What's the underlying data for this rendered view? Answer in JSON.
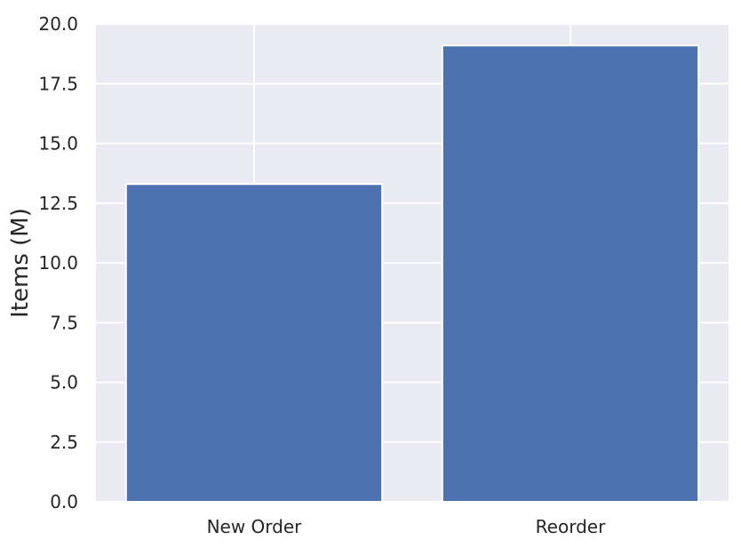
{
  "chart_data": {
    "type": "bar",
    "title": "",
    "xlabel": "",
    "ylabel": "Items (M)",
    "categories": [
      "New Order",
      "Reorder"
    ],
    "values": [
      13.3,
      19.1
    ],
    "ylim": [
      0,
      20
    ],
    "yticks": [
      0,
      2.5,
      5,
      7.5,
      10,
      12.5,
      15,
      17.5,
      20
    ],
    "ytick_labels": [
      "0.0",
      "2.5",
      "5.0",
      "7.5",
      "10.0",
      "12.5",
      "15.0",
      "17.5",
      "20.0"
    ],
    "grid": true,
    "colors": {
      "bar": "#4c72b0",
      "plot_background": "#eaeaf2",
      "grid": "#ffffff"
    }
  }
}
